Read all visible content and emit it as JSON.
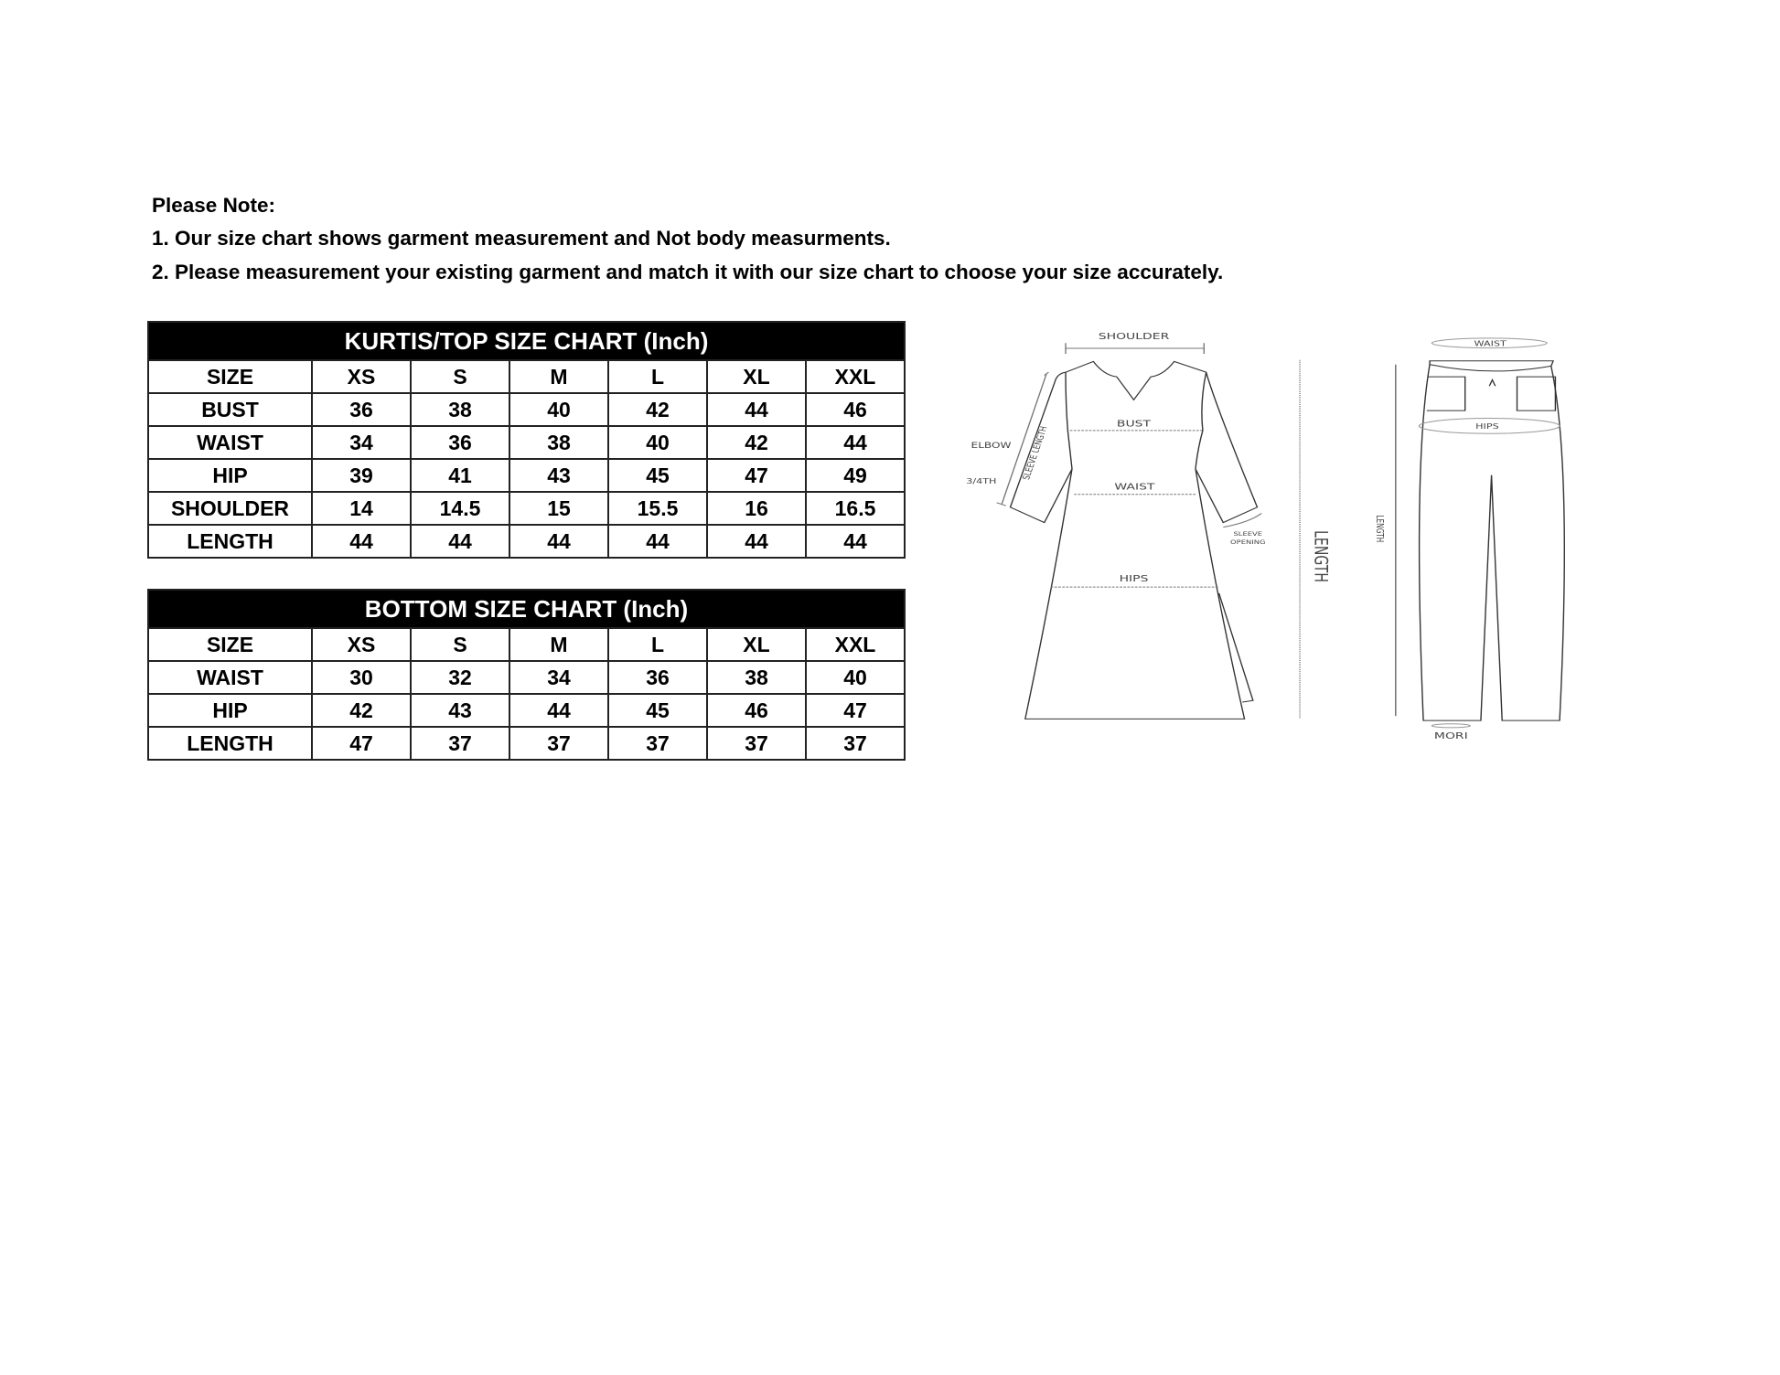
{
  "notes": {
    "heading": "Please Note:",
    "line1": "1. Our size chart shows garment measurement and Not body measurments.",
    "line2": "2. Please measurement your existing garment and match it with our size chart to choose your size accurately."
  },
  "top_chart": {
    "title": "KURTIS/TOP SIZE CHART (Inch)",
    "header": [
      "SIZE",
      "XS",
      "S",
      "M",
      "L",
      "XL",
      "XXL"
    ],
    "rows": [
      [
        "BUST",
        "36",
        "38",
        "40",
        "42",
        "44",
        "46"
      ],
      [
        "WAIST",
        "34",
        "36",
        "38",
        "40",
        "42",
        "44"
      ],
      [
        "HIP",
        "39",
        "41",
        "43",
        "45",
        "47",
        "49"
      ],
      [
        "SHOULDER",
        "14",
        "14.5",
        "15",
        "15.5",
        "16",
        "16.5"
      ],
      [
        "LENGTH",
        "44",
        "44",
        "44",
        "44",
        "44",
        "44"
      ]
    ]
  },
  "bottom_chart": {
    "title": "BOTTOM SIZE CHART (Inch)",
    "header": [
      "SIZE",
      "XS",
      "S",
      "M",
      "L",
      "XL",
      "XXL"
    ],
    "rows": [
      [
        "WAIST",
        "30",
        "32",
        "34",
        "36",
        "38",
        "40"
      ],
      [
        "HIP",
        "42",
        "43",
        "44",
        "45",
        "46",
        "47"
      ],
      [
        "LENGTH",
        "47",
        "37",
        "37",
        "37",
        "37",
        "37"
      ]
    ]
  },
  "diagram": {
    "kurta": {
      "shoulder": "SHOULDER",
      "bust": "BUST",
      "waist": "WAIST",
      "hips": "HIPS",
      "elbow": "ELBOW",
      "three_fourth": "3/4TH",
      "sleeve_length": "SLEEVE LENGTH",
      "sleeve_opening_1": "SLEEVE",
      "sleeve_opening_2": "OPENING",
      "length": "LENGTH"
    },
    "pants": {
      "waist": "WAIST",
      "hips": "HIPS",
      "length": "LENGTH",
      "mori": "MORI"
    }
  }
}
